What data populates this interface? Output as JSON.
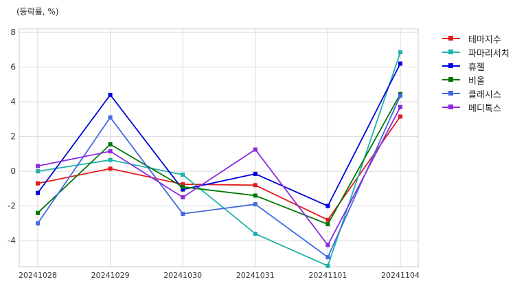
{
  "chart_data": {
    "type": "line",
    "y_unit_label": "(등락률, %)",
    "categories": [
      "20241028",
      "20241029",
      "20241030",
      "20241031",
      "20241101",
      "20241104"
    ],
    "ylim": [
      -5.5,
      8.2
    ],
    "yticks": [
      -4,
      -2,
      0,
      2,
      4,
      6,
      8
    ],
    "grid": true,
    "legend_position": "right",
    "series": [
      {
        "name": "테마지수",
        "color": "#e31a1c",
        "values": [
          -0.7,
          0.15,
          -0.75,
          -0.8,
          -2.8,
          3.15
        ]
      },
      {
        "name": "파마리서치",
        "color": "#20b2aa",
        "values": [
          0.0,
          0.65,
          -0.2,
          -3.6,
          -5.45,
          6.85
        ]
      },
      {
        "name": "휴젤",
        "color": "#0000dd",
        "values": [
          -1.25,
          4.4,
          -1.05,
          -0.15,
          -2.0,
          6.2
        ]
      },
      {
        "name": "비올",
        "color": "#007700",
        "values": [
          -2.4,
          1.55,
          -0.9,
          -1.4,
          -3.05,
          4.45
        ]
      },
      {
        "name": "클래시스",
        "color": "#4169e1",
        "values": [
          -3.0,
          3.1,
          -2.45,
          -1.9,
          -4.95,
          4.35
        ]
      },
      {
        "name": "메디톡스",
        "color": "#8a2be2",
        "values": [
          0.3,
          1.15,
          -1.5,
          1.25,
          -4.25,
          3.7
        ]
      }
    ]
  }
}
